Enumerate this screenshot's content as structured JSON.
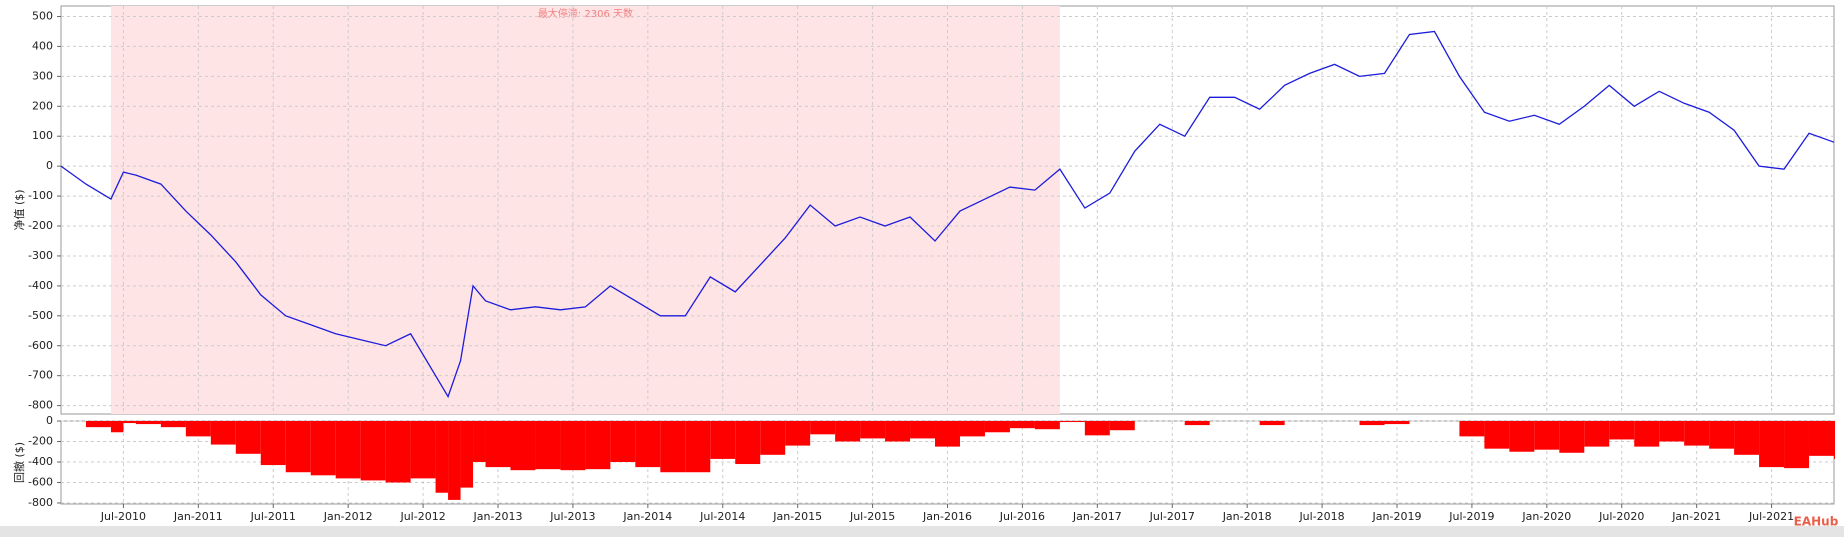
{
  "chart_data": [
    {
      "type": "line",
      "ylabel": "净值 ($)",
      "color": "#1c1cdc",
      "annotation": "最大停滞: 2306 天数",
      "shade": [
        "2010-06",
        "2016-10"
      ],
      "shade_color": "#ffe4e6",
      "x": [
        "2010-02",
        "2010-04",
        "2010-06",
        "2010-07",
        "2010-08",
        "2010-10",
        "2010-12",
        "2011-02",
        "2011-04",
        "2011-06",
        "2011-08",
        "2011-10",
        "2011-12",
        "2012-02",
        "2012-04",
        "2012-06",
        "2012-08",
        "2012-09",
        "2012-10",
        "2012-11",
        "2012-12",
        "2013-02",
        "2013-04",
        "2013-06",
        "2013-08",
        "2013-10",
        "2013-12",
        "2014-02",
        "2014-04",
        "2014-06",
        "2014-08",
        "2014-10",
        "2014-12",
        "2015-02",
        "2015-04",
        "2015-06",
        "2015-08",
        "2015-10",
        "2015-12",
        "2016-02",
        "2016-04",
        "2016-06",
        "2016-08",
        "2016-10",
        "2016-12",
        "2017-02",
        "2017-04",
        "2017-06",
        "2017-08",
        "2017-10",
        "2017-12",
        "2018-02",
        "2018-04",
        "2018-06",
        "2018-08",
        "2018-10",
        "2018-12",
        "2019-02",
        "2019-04",
        "2019-06",
        "2019-08",
        "2019-10",
        "2019-12",
        "2020-02",
        "2020-04",
        "2020-06",
        "2020-08",
        "2020-10",
        "2020-12",
        "2021-02",
        "2021-04",
        "2021-06",
        "2021-08",
        "2021-10",
        "2021-12"
      ],
      "values": [
        0,
        -60,
        -110,
        -20,
        -30,
        -60,
        -150,
        -230,
        -320,
        -430,
        -500,
        -530,
        -560,
        -580,
        -600,
        -560,
        -700,
        -770,
        -650,
        -400,
        -450,
        -480,
        -470,
        -480,
        -470,
        -400,
        -450,
        -500,
        -500,
        -370,
        -420,
        -330,
        -240,
        -130,
        -200,
        -170,
        -200,
        -170,
        -250,
        -150,
        -110,
        -70,
        -80,
        -10,
        -140,
        -90,
        50,
        140,
        100,
        230,
        230,
        190,
        270,
        310,
        340,
        300,
        310,
        440,
        450,
        300,
        180,
        150,
        170,
        140,
        200,
        270,
        200,
        250,
        210,
        180,
        120,
        0,
        -10,
        110,
        80
      ],
      "xlim": [
        "2010-02",
        "2021-12"
      ],
      "ylim": [
        -828,
        535
      ],
      "yticks": [
        500,
        400,
        300,
        200,
        100,
        0,
        -100,
        -200,
        -300,
        -400,
        -500,
        -600,
        -700,
        -800
      ],
      "grid": true
    },
    {
      "type": "bar",
      "ylabel": "回撤 ($)",
      "color": "#ff0000",
      "x": [
        "2010-02",
        "2010-04",
        "2010-06",
        "2010-07",
        "2010-08",
        "2010-10",
        "2010-12",
        "2011-02",
        "2011-04",
        "2011-06",
        "2011-08",
        "2011-10",
        "2011-12",
        "2012-02",
        "2012-04",
        "2012-06",
        "2012-08",
        "2012-09",
        "2012-10",
        "2012-11",
        "2012-12",
        "2013-02",
        "2013-04",
        "2013-06",
        "2013-08",
        "2013-10",
        "2013-12",
        "2014-02",
        "2014-04",
        "2014-06",
        "2014-08",
        "2014-10",
        "2014-12",
        "2015-02",
        "2015-04",
        "2015-06",
        "2015-08",
        "2015-10",
        "2015-12",
        "2016-02",
        "2016-04",
        "2016-06",
        "2016-08",
        "2016-10",
        "2016-12",
        "2017-02",
        "2017-04",
        "2017-06",
        "2017-08",
        "2017-10",
        "2017-12",
        "2018-02",
        "2018-04",
        "2018-06",
        "2018-08",
        "2018-10",
        "2018-12",
        "2019-02",
        "2019-04",
        "2019-06",
        "2019-08",
        "2019-10",
        "2019-12",
        "2020-02",
        "2020-04",
        "2020-06",
        "2020-08",
        "2020-10",
        "2020-12",
        "2021-02",
        "2021-04",
        "2021-06",
        "2021-08",
        "2021-10",
        "2021-12"
      ],
      "values": [
        0,
        -60,
        -110,
        -20,
        -30,
        -60,
        -150,
        -230,
        -320,
        -430,
        -500,
        -530,
        -560,
        -580,
        -600,
        -560,
        -700,
        -770,
        -650,
        -400,
        -450,
        -480,
        -470,
        -480,
        -470,
        -400,
        -450,
        -500,
        -500,
        -370,
        -420,
        -330,
        -240,
        -130,
        -200,
        -170,
        -200,
        -170,
        -250,
        -150,
        -110,
        -70,
        -80,
        -10,
        -140,
        -90,
        0,
        0,
        -40,
        0,
        0,
        -40,
        0,
        0,
        0,
        -40,
        -30,
        0,
        0,
        -150,
        -270,
        -300,
        -280,
        -310,
        -250,
        -180,
        -250,
        -200,
        -240,
        -270,
        -330,
        -450,
        -460,
        -340,
        -370
      ],
      "xlim": [
        "2010-02",
        "2021-12"
      ],
      "ylim": [
        -810,
        0
      ],
      "yticks": [
        0,
        -200,
        -400,
        -600,
        -800
      ],
      "grid": true,
      "xticks": [
        {
          "value": "2010-07",
          "label": "Jul-2010"
        },
        {
          "value": "2011-01",
          "label": "Jan-2011"
        },
        {
          "value": "2011-07",
          "label": "Jul-2011"
        },
        {
          "value": "2012-01",
          "label": "Jan-2012"
        },
        {
          "value": "2012-07",
          "label": "Jul-2012"
        },
        {
          "value": "2013-01",
          "label": "Jan-2013"
        },
        {
          "value": "2013-07",
          "label": "Jul-2013"
        },
        {
          "value": "2014-01",
          "label": "Jan-2014"
        },
        {
          "value": "2014-07",
          "label": "Jul-2014"
        },
        {
          "value": "2015-01",
          "label": "Jan-2015"
        },
        {
          "value": "2015-07",
          "label": "Jul-2015"
        },
        {
          "value": "2016-01",
          "label": "Jan-2016"
        },
        {
          "value": "2016-07",
          "label": "Jul-2016"
        },
        {
          "value": "2017-01",
          "label": "Jan-2017"
        },
        {
          "value": "2017-07",
          "label": "Jul-2017"
        },
        {
          "value": "2018-01",
          "label": "Jan-2018"
        },
        {
          "value": "2018-07",
          "label": "Jul-2018"
        },
        {
          "value": "2019-01",
          "label": "Jan-2019"
        },
        {
          "value": "2019-07",
          "label": "Jul-2019"
        },
        {
          "value": "2020-01",
          "label": "Jan-2020"
        },
        {
          "value": "2020-07",
          "label": "Jul-2020"
        },
        {
          "value": "2021-01",
          "label": "Jan-2021"
        },
        {
          "value": "2021-07",
          "label": "Jul-2021"
        }
      ]
    }
  ],
  "watermark": "EAHub"
}
